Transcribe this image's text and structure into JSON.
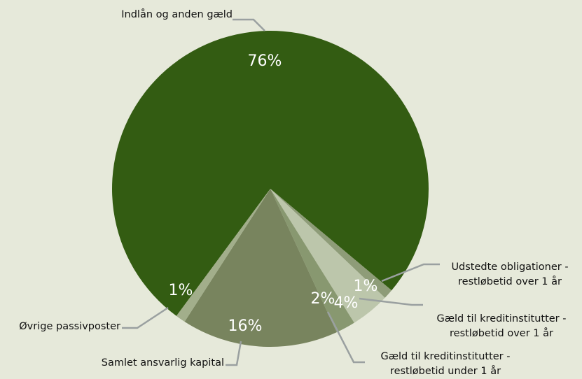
{
  "chart_data": {
    "type": "pie",
    "categories": [
      "Indlån og anden gæld",
      "Udstedte obligationer - restløbetid over 1 år",
      "Gæld til kreditinstitutter - restløbetid over 1 år",
      "Gæld til kreditinstitutter - restløbetid under 1 år",
      "Samlet ansvarlig kapital",
      "Øvrige passivposter"
    ],
    "values": [
      76,
      1,
      4,
      2,
      16,
      1
    ],
    "value_labels": [
      "76%",
      "1%",
      "4%",
      "2%",
      "16%",
      "1%"
    ],
    "colors": [
      "#335c12",
      "#8e9c78",
      "#bcc6ab",
      "#889870",
      "#78845e",
      "#a2ae8b"
    ]
  }
}
